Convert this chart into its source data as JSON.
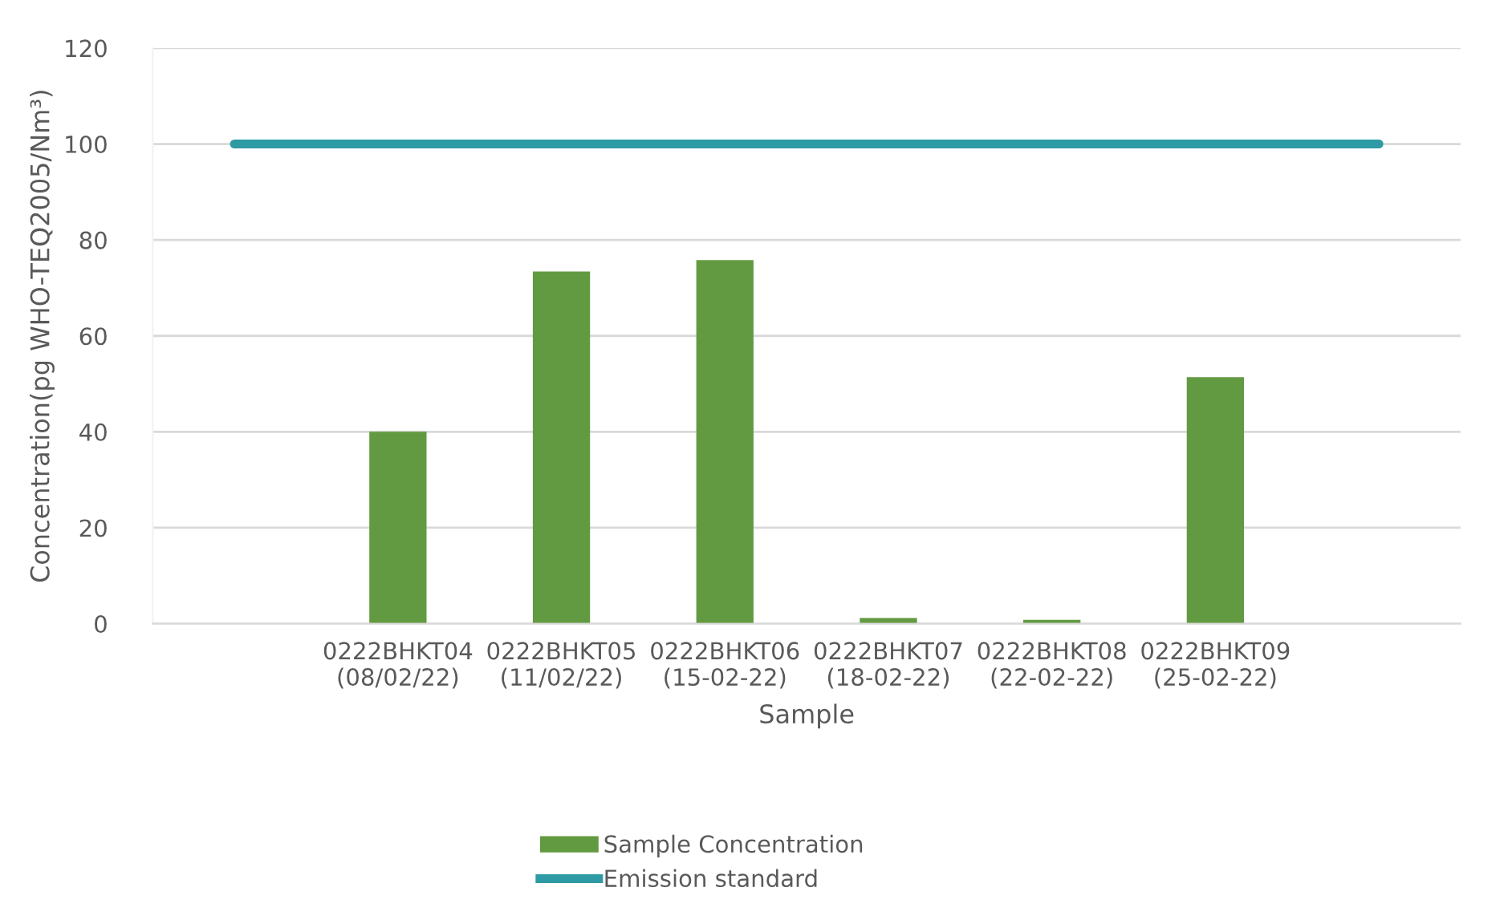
{
  "chart_data": {
    "type": "bar",
    "categories": [
      null,
      "0222BHKT04\n(08/02/22)",
      "0222BHKT05\n(11/02/22)",
      "0222BHKT06\n(15-02-22)",
      "0222BHKT07\n(18-02-22)",
      "0222BHKT08\n(22-02-22)",
      "0222BHKT09\n(25-02-22)",
      null
    ],
    "series": [
      {
        "name": "Sample Concentration",
        "color": "#629a41",
        "values": [
          null,
          40,
          73.4,
          75.8,
          1.2,
          0.8,
          51.4,
          null
        ]
      },
      {
        "name": "Emission standard",
        "type": "line",
        "color": "#2e9aa3",
        "values": [
          100,
          100,
          100,
          100,
          100,
          100,
          100,
          100
        ]
      }
    ],
    "xlabel": "Sample",
    "ylabel": "Concentration(pg WHO-TEQ2005/Nm³)",
    "ylim": [
      0,
      120
    ],
    "yticks": [
      0,
      20,
      40,
      60,
      80,
      100,
      120
    ],
    "grid": "y",
    "legend": "bottom"
  }
}
